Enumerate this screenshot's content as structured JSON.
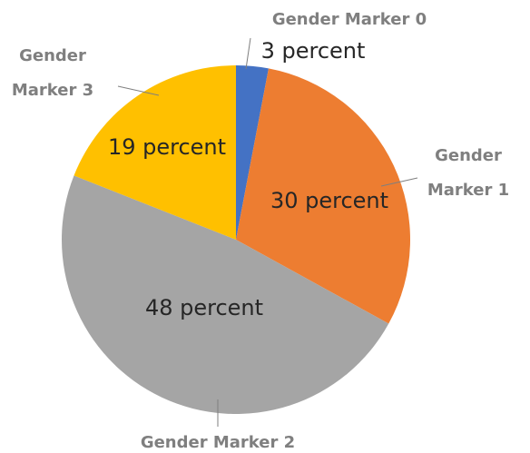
{
  "chart_data": {
    "type": "pie",
    "categories": [
      "Gender Marker 0",
      "Gender Marker 1",
      "Gender Marker 2",
      "Gender Marker 3"
    ],
    "values": [
      3,
      30,
      48,
      19
    ],
    "value_labels": [
      "3 percent",
      "30 percent",
      "48 percent",
      "19 percent"
    ],
    "colors": [
      "#4472c4",
      "#ed7d31",
      "#a5a5a5",
      "#ffc000"
    ]
  }
}
